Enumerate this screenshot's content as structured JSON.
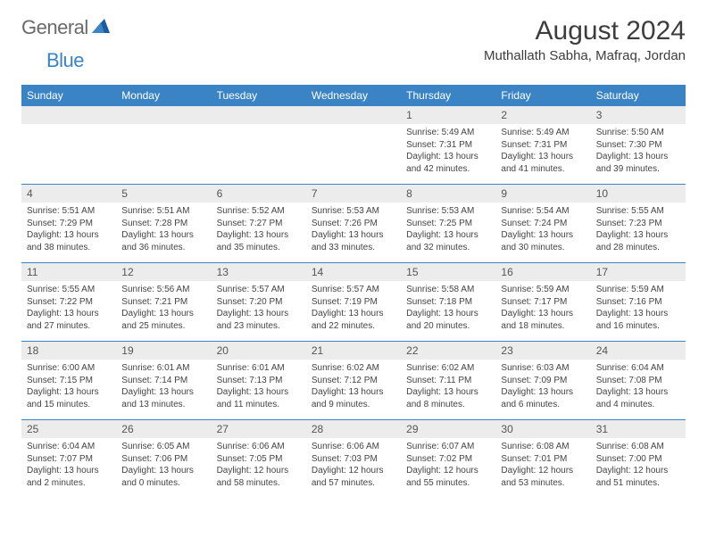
{
  "logo": {
    "part1": "General",
    "part2": "Blue"
  },
  "title": "August 2024",
  "location": "Muthallath Sabha, Mafraq, Jordan",
  "colors": {
    "header_bg": "#3a84c5",
    "header_text": "#ffffff",
    "date_row_bg": "#ececec",
    "border": "#3a84c5",
    "body_text": "#444444",
    "title_text": "#3d3d3d",
    "logo_gray": "#6a6a6a",
    "logo_blue": "#3a84c5"
  },
  "typography": {
    "title_fontsize": 30,
    "location_fontsize": 15,
    "day_header_fontsize": 12,
    "date_num_fontsize": 12,
    "cell_fontsize": 10
  },
  "day_names": [
    "Sunday",
    "Monday",
    "Tuesday",
    "Wednesday",
    "Thursday",
    "Friday",
    "Saturday"
  ],
  "weeks": [
    {
      "dates": [
        "",
        "",
        "",
        "",
        "1",
        "2",
        "3"
      ],
      "cells": [
        null,
        null,
        null,
        null,
        {
          "sunrise": "Sunrise: 5:49 AM",
          "sunset": "Sunset: 7:31 PM",
          "daylight1": "Daylight: 13 hours",
          "daylight2": "and 42 minutes."
        },
        {
          "sunrise": "Sunrise: 5:49 AM",
          "sunset": "Sunset: 7:31 PM",
          "daylight1": "Daylight: 13 hours",
          "daylight2": "and 41 minutes."
        },
        {
          "sunrise": "Sunrise: 5:50 AM",
          "sunset": "Sunset: 7:30 PM",
          "daylight1": "Daylight: 13 hours",
          "daylight2": "and 39 minutes."
        }
      ]
    },
    {
      "dates": [
        "4",
        "5",
        "6",
        "7",
        "8",
        "9",
        "10"
      ],
      "cells": [
        {
          "sunrise": "Sunrise: 5:51 AM",
          "sunset": "Sunset: 7:29 PM",
          "daylight1": "Daylight: 13 hours",
          "daylight2": "and 38 minutes."
        },
        {
          "sunrise": "Sunrise: 5:51 AM",
          "sunset": "Sunset: 7:28 PM",
          "daylight1": "Daylight: 13 hours",
          "daylight2": "and 36 minutes."
        },
        {
          "sunrise": "Sunrise: 5:52 AM",
          "sunset": "Sunset: 7:27 PM",
          "daylight1": "Daylight: 13 hours",
          "daylight2": "and 35 minutes."
        },
        {
          "sunrise": "Sunrise: 5:53 AM",
          "sunset": "Sunset: 7:26 PM",
          "daylight1": "Daylight: 13 hours",
          "daylight2": "and 33 minutes."
        },
        {
          "sunrise": "Sunrise: 5:53 AM",
          "sunset": "Sunset: 7:25 PM",
          "daylight1": "Daylight: 13 hours",
          "daylight2": "and 32 minutes."
        },
        {
          "sunrise": "Sunrise: 5:54 AM",
          "sunset": "Sunset: 7:24 PM",
          "daylight1": "Daylight: 13 hours",
          "daylight2": "and 30 minutes."
        },
        {
          "sunrise": "Sunrise: 5:55 AM",
          "sunset": "Sunset: 7:23 PM",
          "daylight1": "Daylight: 13 hours",
          "daylight2": "and 28 minutes."
        }
      ]
    },
    {
      "dates": [
        "11",
        "12",
        "13",
        "14",
        "15",
        "16",
        "17"
      ],
      "cells": [
        {
          "sunrise": "Sunrise: 5:55 AM",
          "sunset": "Sunset: 7:22 PM",
          "daylight1": "Daylight: 13 hours",
          "daylight2": "and 27 minutes."
        },
        {
          "sunrise": "Sunrise: 5:56 AM",
          "sunset": "Sunset: 7:21 PM",
          "daylight1": "Daylight: 13 hours",
          "daylight2": "and 25 minutes."
        },
        {
          "sunrise": "Sunrise: 5:57 AM",
          "sunset": "Sunset: 7:20 PM",
          "daylight1": "Daylight: 13 hours",
          "daylight2": "and 23 minutes."
        },
        {
          "sunrise": "Sunrise: 5:57 AM",
          "sunset": "Sunset: 7:19 PM",
          "daylight1": "Daylight: 13 hours",
          "daylight2": "and 22 minutes."
        },
        {
          "sunrise": "Sunrise: 5:58 AM",
          "sunset": "Sunset: 7:18 PM",
          "daylight1": "Daylight: 13 hours",
          "daylight2": "and 20 minutes."
        },
        {
          "sunrise": "Sunrise: 5:59 AM",
          "sunset": "Sunset: 7:17 PM",
          "daylight1": "Daylight: 13 hours",
          "daylight2": "and 18 minutes."
        },
        {
          "sunrise": "Sunrise: 5:59 AM",
          "sunset": "Sunset: 7:16 PM",
          "daylight1": "Daylight: 13 hours",
          "daylight2": "and 16 minutes."
        }
      ]
    },
    {
      "dates": [
        "18",
        "19",
        "20",
        "21",
        "22",
        "23",
        "24"
      ],
      "cells": [
        {
          "sunrise": "Sunrise: 6:00 AM",
          "sunset": "Sunset: 7:15 PM",
          "daylight1": "Daylight: 13 hours",
          "daylight2": "and 15 minutes."
        },
        {
          "sunrise": "Sunrise: 6:01 AM",
          "sunset": "Sunset: 7:14 PM",
          "daylight1": "Daylight: 13 hours",
          "daylight2": "and 13 minutes."
        },
        {
          "sunrise": "Sunrise: 6:01 AM",
          "sunset": "Sunset: 7:13 PM",
          "daylight1": "Daylight: 13 hours",
          "daylight2": "and 11 minutes."
        },
        {
          "sunrise": "Sunrise: 6:02 AM",
          "sunset": "Sunset: 7:12 PM",
          "daylight1": "Daylight: 13 hours",
          "daylight2": "and 9 minutes."
        },
        {
          "sunrise": "Sunrise: 6:02 AM",
          "sunset": "Sunset: 7:11 PM",
          "daylight1": "Daylight: 13 hours",
          "daylight2": "and 8 minutes."
        },
        {
          "sunrise": "Sunrise: 6:03 AM",
          "sunset": "Sunset: 7:09 PM",
          "daylight1": "Daylight: 13 hours",
          "daylight2": "and 6 minutes."
        },
        {
          "sunrise": "Sunrise: 6:04 AM",
          "sunset": "Sunset: 7:08 PM",
          "daylight1": "Daylight: 13 hours",
          "daylight2": "and 4 minutes."
        }
      ]
    },
    {
      "dates": [
        "25",
        "26",
        "27",
        "28",
        "29",
        "30",
        "31"
      ],
      "cells": [
        {
          "sunrise": "Sunrise: 6:04 AM",
          "sunset": "Sunset: 7:07 PM",
          "daylight1": "Daylight: 13 hours",
          "daylight2": "and 2 minutes."
        },
        {
          "sunrise": "Sunrise: 6:05 AM",
          "sunset": "Sunset: 7:06 PM",
          "daylight1": "Daylight: 13 hours",
          "daylight2": "and 0 minutes."
        },
        {
          "sunrise": "Sunrise: 6:06 AM",
          "sunset": "Sunset: 7:05 PM",
          "daylight1": "Daylight: 12 hours",
          "daylight2": "and 58 minutes."
        },
        {
          "sunrise": "Sunrise: 6:06 AM",
          "sunset": "Sunset: 7:03 PM",
          "daylight1": "Daylight: 12 hours",
          "daylight2": "and 57 minutes."
        },
        {
          "sunrise": "Sunrise: 6:07 AM",
          "sunset": "Sunset: 7:02 PM",
          "daylight1": "Daylight: 12 hours",
          "daylight2": "and 55 minutes."
        },
        {
          "sunrise": "Sunrise: 6:08 AM",
          "sunset": "Sunset: 7:01 PM",
          "daylight1": "Daylight: 12 hours",
          "daylight2": "and 53 minutes."
        },
        {
          "sunrise": "Sunrise: 6:08 AM",
          "sunset": "Sunset: 7:00 PM",
          "daylight1": "Daylight: 12 hours",
          "daylight2": "and 51 minutes."
        }
      ]
    }
  ]
}
